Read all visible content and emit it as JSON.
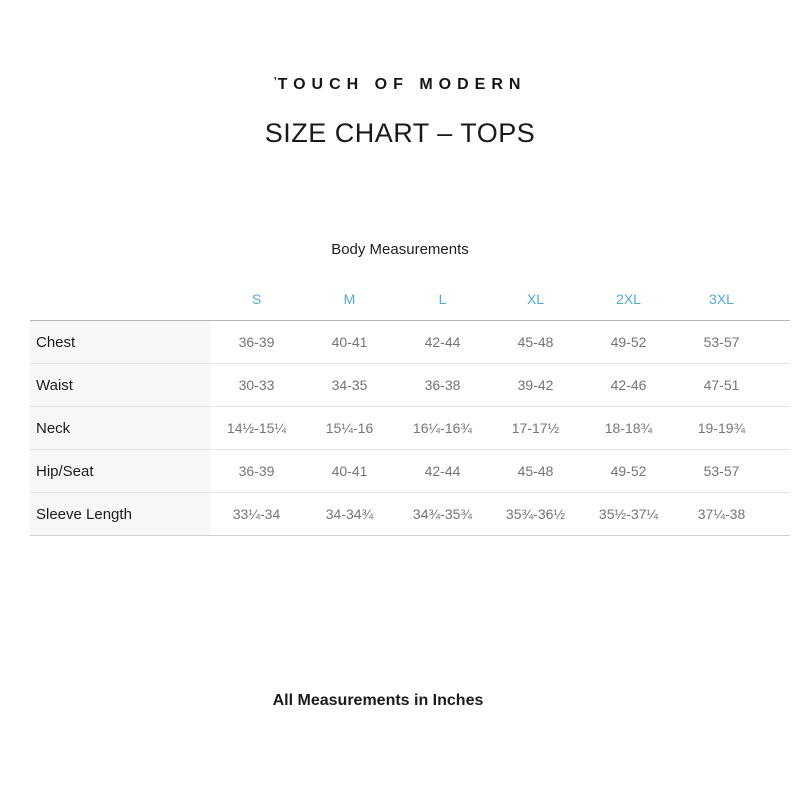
{
  "header": {
    "logo_mark": "ʼ",
    "logo_text": "TOUCH OF MODERN",
    "title": "SIZE CHART – TOPS"
  },
  "table": {
    "section_title": "Body Measurements",
    "columns": [
      "S",
      "M",
      "L",
      "XL",
      "2XL",
      "3XL"
    ],
    "rows": [
      {
        "label": "Chest",
        "values": [
          "36-39",
          "40-41",
          "42-44",
          "45-48",
          "49-52",
          "53-57"
        ]
      },
      {
        "label": "Waist",
        "values": [
          "30-33",
          "34-35",
          "36-38",
          "39-42",
          "42-46",
          "47-51"
        ]
      },
      {
        "label": "Neck",
        "values": [
          "14½-15¼",
          "15¼-16",
          "16¼-16¾",
          "17-17½",
          "18-18¾",
          "19-19¾"
        ]
      },
      {
        "label": "Hip/Seat",
        "values": [
          "36-39",
          "40-41",
          "42-44",
          "45-48",
          "49-52",
          "53-57"
        ]
      },
      {
        "label": "Sleeve Length",
        "values": [
          "33¼-34",
          "34-34¾",
          "34¾-35¾",
          "35¾-36½",
          "35½-37¼",
          "37¼-38"
        ]
      }
    ]
  },
  "footer": {
    "note": "All Measurements in Inches"
  },
  "colors": {
    "accent_blue": "#54a9dc",
    "cell_text": "#757575",
    "label_background": "#f7f7f7",
    "table_top_border": "#b5b5b5",
    "row_divider": "#e4e4e4",
    "page_background": "#ffffff"
  }
}
